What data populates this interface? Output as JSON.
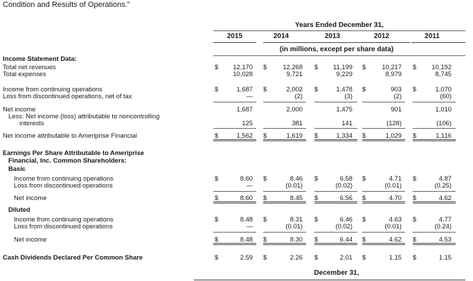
{
  "intro_text": "Condition and Results of Operations.”",
  "header": {
    "years_ended": "Years Ended December 31,",
    "units": "(in millions, except per share data)",
    "years": [
      "2015",
      "2014",
      "2013",
      "2012",
      "2011"
    ]
  },
  "currency_symbol": "$",
  "sections": {
    "income_statement": "Income Statement Data:",
    "eps": "Earnings Per Share Attributable to Ameriprise",
    "eps_line2": "Financial, Inc. Common Shareholders:",
    "basic": "Basic",
    "diluted": "Diluted"
  },
  "rows": [
    {
      "label": "Total net revenues",
      "values": [
        "12,170",
        "12,268",
        "11,199",
        "10,217",
        "10,192"
      ],
      "dollar": true
    },
    {
      "label": "Total expenses",
      "values": [
        "10,028",
        "9,721",
        "9,229",
        "8,979",
        "8,745"
      ],
      "dollar": false
    },
    {
      "label": "Income from continuing operations",
      "values": [
        "1,687",
        "2,002",
        "1,478",
        "903",
        "1,070"
      ],
      "dollar": true
    },
    {
      "label": "Loss from discontinued operations, net of tax",
      "values": [
        "—",
        "(2)",
        "(3)",
        "(2)",
        "(60)"
      ],
      "dollar": false
    },
    {
      "label": "Net income",
      "values": [
        "1,687",
        "2,000",
        "1,475",
        "901",
        "1,010"
      ],
      "dollar": false
    },
    {
      "label": "Less: Net income (loss) attributable to noncontrolling",
      "label2": "interests",
      "values": [
        "125",
        "381",
        "141",
        "(128)",
        "(106)"
      ],
      "dollar": false
    },
    {
      "label": "Net income attributable to Ameriprise Financial",
      "values": [
        "1,562",
        "1,619",
        "1,334",
        "1,029",
        "1,116"
      ],
      "dollar": true
    },
    {
      "label": "Income from continuing operations",
      "values": [
        "8.60",
        "8.46",
        "6.58",
        "4.71",
        "4.87"
      ],
      "dollar": true
    },
    {
      "label": "Loss from discontinued operations",
      "values": [
        "—",
        "(0.01)",
        "(0.02)",
        "(0.01)",
        "(0.25)"
      ],
      "dollar": false
    },
    {
      "label": "Net income",
      "values": [
        "8.60",
        "8.45",
        "6.56",
        "4.70",
        "4.62"
      ],
      "dollar": true
    },
    {
      "label": "Income from continuing operations",
      "values": [
        "8.48",
        "8.31",
        "6.46",
        "4.63",
        "4.77"
      ],
      "dollar": true
    },
    {
      "label": "Loss from discontinued operations",
      "values": [
        "—",
        "(0.01)",
        "(0.02)",
        "(0.01)",
        "(0.24)"
      ],
      "dollar": false
    },
    {
      "label": "Net income",
      "values": [
        "8.48",
        "8.30",
        "6.44",
        "4.62",
        "4.53"
      ],
      "dollar": true
    },
    {
      "label": "Cash Dividends Declared Per Common Share",
      "values": [
        "2.59",
        "2.26",
        "2.01",
        "1.15",
        "1.15"
      ],
      "dollar": true
    }
  ],
  "footer_header": "December 31,"
}
